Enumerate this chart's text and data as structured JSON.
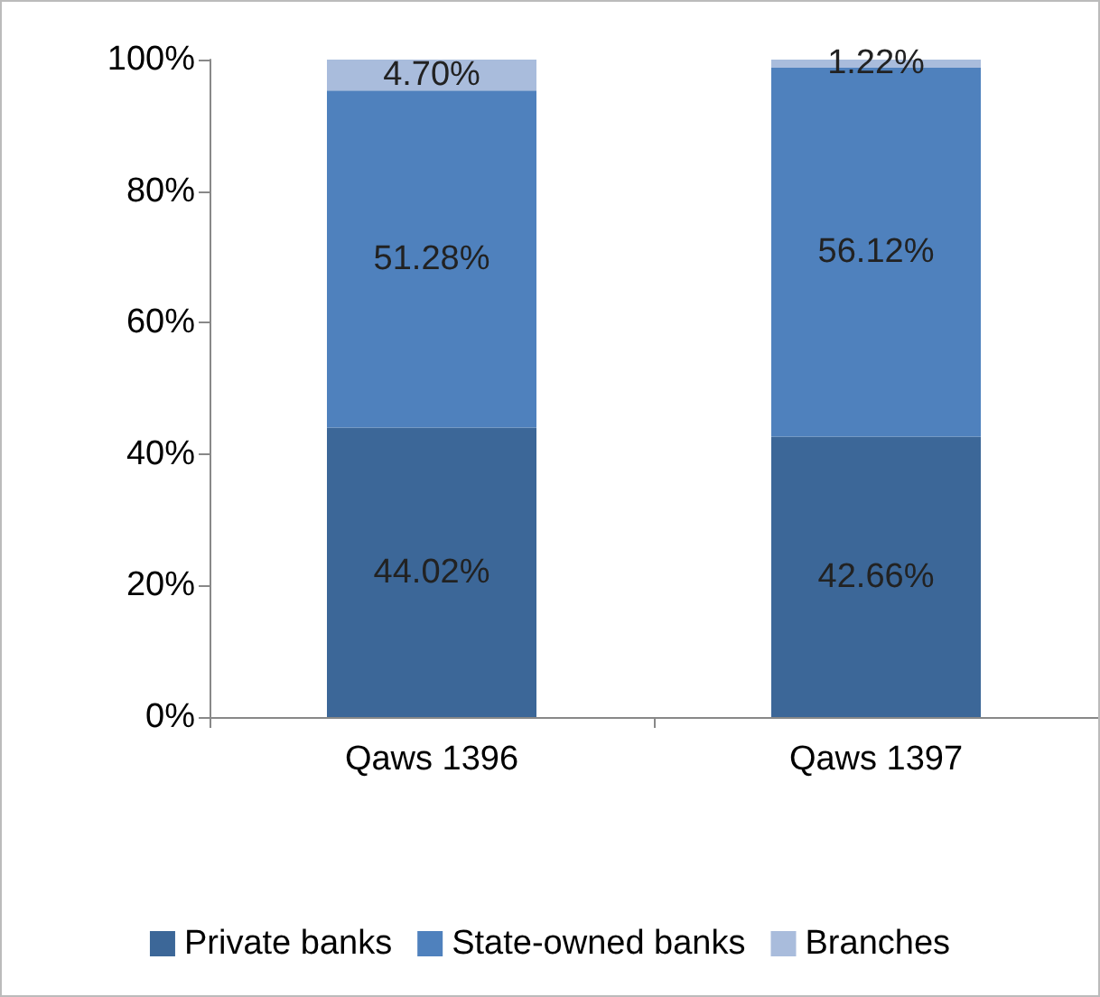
{
  "chart_data": {
    "type": "bar",
    "stacked": true,
    "categories": [
      "Qaws 1396",
      "Qaws 1397"
    ],
    "series": [
      {
        "name": "Private banks",
        "color": "#3c6798",
        "values": [
          44.02,
          42.66
        ],
        "value_labels": [
          "44.02%",
          "42.66%"
        ]
      },
      {
        "name": "State-owned banks",
        "color": "#4f81bd",
        "values": [
          51.28,
          56.12
        ],
        "value_labels": [
          "51.28%",
          "56.12%"
        ]
      },
      {
        "name": "Branches",
        "color": "#a9bcdc",
        "values": [
          4.7,
          1.22
        ],
        "value_labels": [
          "4.70%",
          "1.22%"
        ]
      }
    ],
    "ylim": [
      0,
      100
    ],
    "yticks": [
      {
        "value": 0,
        "label": "0%"
      },
      {
        "value": 20,
        "label": "20%"
      },
      {
        "value": 40,
        "label": "40%"
      },
      {
        "value": 60,
        "label": "60%"
      },
      {
        "value": 80,
        "label": "80%"
      },
      {
        "value": 100,
        "label": "100%"
      }
    ],
    "grid": false,
    "legend": "bottom"
  }
}
